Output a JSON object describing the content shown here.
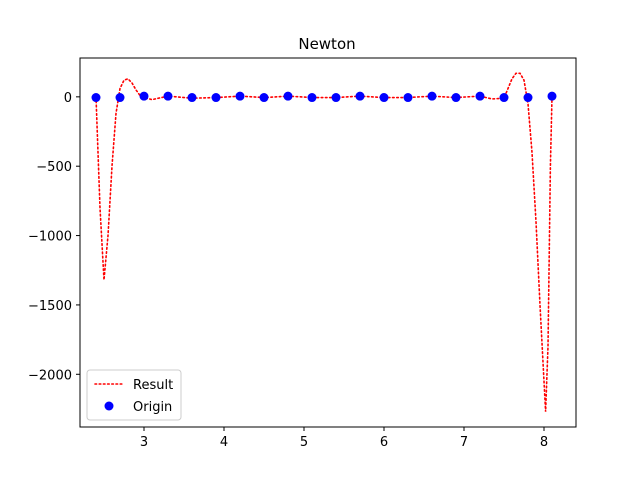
{
  "chart_data": {
    "type": "line",
    "title": "Newton",
    "xlabel": "",
    "ylabel": "",
    "xlim": [
      2.2,
      8.4
    ],
    "ylim": [
      -2380,
      280
    ],
    "xticks": [
      3,
      4,
      5,
      6,
      7,
      8
    ],
    "yticks": [
      0,
      -500,
      -1000,
      -1500,
      -2000
    ],
    "ytick_labels": [
      "0",
      "−500",
      "−1000",
      "−1500",
      "−2000"
    ],
    "grid": false,
    "legend_position": "lower-left",
    "series": [
      {
        "name": "Result",
        "style": "dotted-line",
        "color": "#ff0000",
        "x": [
          2.4,
          2.45,
          2.5,
          2.55,
          2.6,
          2.65,
          2.7,
          2.75,
          2.8,
          2.85,
          2.9,
          2.95,
          3.0,
          3.1,
          3.3,
          3.6,
          3.9,
          4.2,
          4.5,
          4.8,
          5.1,
          5.4,
          5.7,
          6.0,
          6.3,
          6.6,
          6.9,
          7.2,
          7.35,
          7.5,
          7.55,
          7.6,
          7.65,
          7.7,
          7.75,
          7.8,
          7.85,
          7.9,
          7.95,
          8.0,
          8.02,
          8.05,
          8.08,
          8.1
        ],
        "y": [
          0,
          -800,
          -1320,
          -1000,
          -500,
          -120,
          60,
          120,
          130,
          100,
          50,
          10,
          -5,
          -20,
          5,
          -10,
          -5,
          5,
          -5,
          5,
          -5,
          -5,
          5,
          -5,
          -5,
          5,
          -5,
          5,
          -15,
          -10,
          60,
          130,
          170,
          170,
          120,
          -50,
          -400,
          -900,
          -1500,
          -2050,
          -2270,
          -1800,
          -500,
          0
        ]
      },
      {
        "name": "Origin",
        "style": "markers",
        "color": "#0000ff",
        "x": [
          2.4,
          2.7,
          3.0,
          3.3,
          3.6,
          3.9,
          4.2,
          4.5,
          4.8,
          5.1,
          5.4,
          5.7,
          6.0,
          6.3,
          6.6,
          6.9,
          7.2,
          7.5,
          7.8,
          8.1
        ],
        "y": [
          -5,
          -5,
          5,
          5,
          -5,
          -5,
          5,
          -5,
          5,
          -5,
          -5,
          5,
          -5,
          -5,
          5,
          -5,
          5,
          -5,
          -5,
          5
        ]
      }
    ]
  }
}
